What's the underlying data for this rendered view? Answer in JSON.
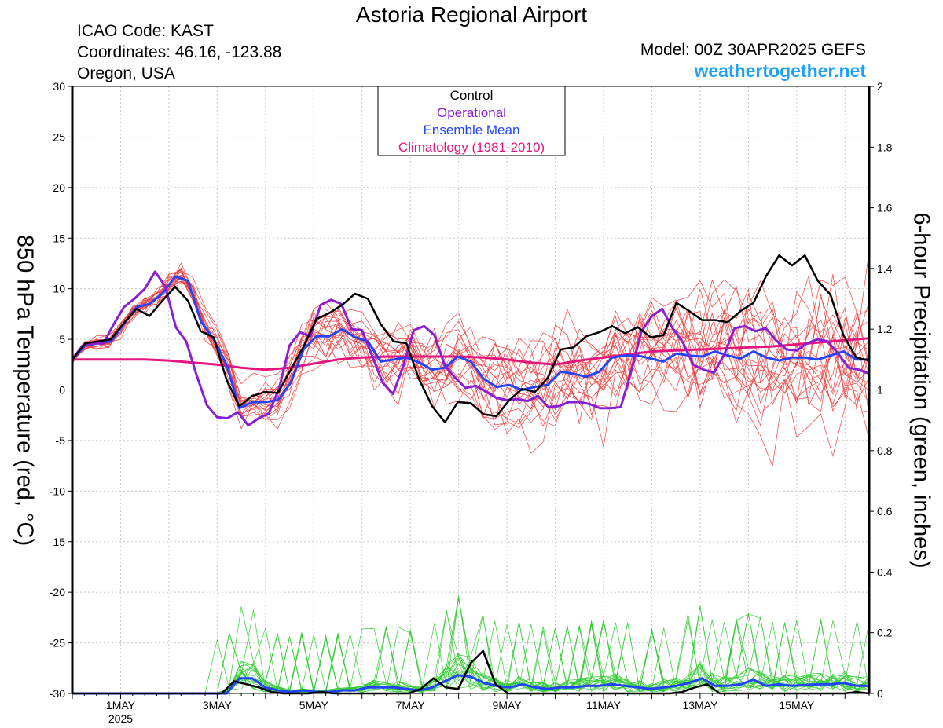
{
  "header": {
    "title": "Astoria Regional Airport",
    "icao": "ICAO Code: KAST",
    "coordinates": "Coordinates: 46.16, -123.88",
    "region": "Oregon, USA",
    "model": "Model: 00Z 30APR2025 GEFS",
    "website": "weathertogether.net"
  },
  "chart_data": {
    "type": "line",
    "title": "Astoria Regional Airport",
    "ylabel_left": "850 hPa Temperature (red, °C)",
    "ylabel_right": "6-hour Precipitation (green, inches)",
    "ylim_left": [
      -30,
      30
    ],
    "ylim_right": [
      0,
      2
    ],
    "yticks_left": [
      "30",
      "25",
      "20",
      "15",
      "10",
      "5",
      "0",
      "-5",
      "-10",
      "-15",
      "-20",
      "-25",
      "-30"
    ],
    "yticks_right": [
      "2",
      "1.8",
      "1.6",
      "1.4",
      "1.2",
      "1",
      "0.8",
      "0.6",
      "0.4",
      "0.2",
      "0"
    ],
    "xlim_days": [
      0,
      16.5
    ],
    "xticks": [
      {
        "label": "1MAY",
        "sub": "2025",
        "day": 1
      },
      {
        "label": "3MAY",
        "day": 3
      },
      {
        "label": "5MAY",
        "day": 5
      },
      {
        "label": "7MAY",
        "day": 7
      },
      {
        "label": "9MAY",
        "day": 9
      },
      {
        "label": "11MAY",
        "day": 11
      },
      {
        "label": "13MAY",
        "day": 13
      },
      {
        "label": "15MAY",
        "day": 15
      }
    ],
    "grid": true,
    "legend": {
      "position": "top-center",
      "entries": [
        {
          "name": "Control",
          "color": "#000000"
        },
        {
          "name": "Operational",
          "color": "#8a1ed6"
        },
        {
          "name": "Ensemble Mean",
          "color": "#2244ff"
        },
        {
          "name": "Climatology (1981-2010)",
          "color": "#e6157e"
        }
      ]
    },
    "colors": {
      "control": "#000000",
      "operational": "#8a1ed6",
      "mean": "#2244ff",
      "climatology": "#e6157e",
      "members_temp": "#f04040",
      "members_precip": "#33cc33"
    },
    "series_temp": {
      "control": [
        3,
        4.6,
        4.8,
        5,
        6.6,
        8,
        7.3,
        8.8,
        10.2,
        8.8,
        5.8,
        5.2,
        1,
        -1.6,
        -0.6,
        -0.2,
        -0.3,
        2,
        4.3,
        7,
        7.6,
        8.4,
        9.5,
        9,
        6.5,
        4.8,
        4.6,
        1,
        -1.6,
        -3.2,
        -1.2,
        -1.3,
        -2.4,
        -2.6,
        -1,
        0.1,
        -0.2,
        1.2,
        4,
        4.2,
        5.3,
        5.7,
        6.3,
        5.6,
        6.2,
        5.2,
        5.4,
        8.6,
        7.8,
        6.9,
        6.9,
        6.7,
        7.8,
        8.6,
        11.3,
        13.3,
        12.3,
        13.3,
        10.8,
        9.4,
        5.4,
        3.2,
        2.9
      ],
      "operational": [
        3,
        4.4,
        4.6,
        4.6,
        6.5,
        8.2,
        9,
        10,
        11.7,
        10.2,
        6.2,
        4.8,
        1.5,
        -1.5,
        -2.7,
        -2.8,
        -2.2,
        -3.5,
        -2.8,
        -2.3,
        0.2,
        4.4,
        5.7,
        5.3,
        8.4,
        8.9,
        8.5,
        6,
        5.9,
        3.3,
        0.7,
        -0.4,
        2.4,
        5.9,
        6.3,
        5.4,
        2.4,
        1.2,
        0.2,
        0.4,
        -0.2,
        -0.8,
        -1,
        -0.9,
        -1.1,
        -0.6,
        -1.7,
        -1.6,
        -1.2,
        -1.2,
        -1.4,
        -1.8,
        -1.8,
        -1.7,
        1.8,
        5.8,
        7.3,
        8,
        6.1,
        4.7,
        2.5,
        2,
        1.7,
        3.5,
        6.1,
        6.3,
        5.8,
        6.1,
        4.9,
        4,
        3.9,
        4.6,
        5,
        4.8,
        3.6,
        2.2,
        2,
        1.6
      ],
      "mean": [
        3,
        4.4,
        4.6,
        4.8,
        6.5,
        8.2,
        8.5,
        9.5,
        11.2,
        10.8,
        6.8,
        5,
        2.5,
        -1.8,
        -1.2,
        -1.2,
        -1,
        0.7,
        4,
        5.3,
        5.3,
        6,
        5.2,
        4.8,
        2.8,
        3,
        3.2,
        2.7,
        2,
        2.2,
        3.3,
        2.8,
        1.1,
        0.3,
        0.5,
        0,
        0.3,
        0.5,
        1.8,
        1.6,
        1.3,
        1.8,
        3.2,
        3.4,
        3.4,
        3.1,
        2.8,
        3.6,
        3.4,
        3.3,
        3.8,
        3.4,
        3.1,
        3.8,
        3.2,
        2.9,
        3.2,
        3.2,
        3,
        3.4,
        3.8,
        3,
        3
      ],
      "climatology": [
        3,
        3,
        3,
        3,
        2.9,
        2.7,
        2.5,
        2.2,
        2,
        2.2,
        2.6,
        3,
        3.2,
        3.3,
        3.3,
        3.3,
        3.3,
        3.2,
        3,
        2.7,
        2.5,
        2.9,
        3.2,
        3.5,
        3.8,
        3.9,
        4,
        4.1,
        4.2,
        4.3,
        4.5,
        4.7,
        4.9,
        5.1
      ]
    },
    "series_precip": {
      "control": [
        0,
        0,
        0,
        0,
        0,
        0,
        0,
        0,
        0,
        0,
        0,
        0,
        0,
        0.04,
        0.03,
        0.02,
        0.005,
        0,
        0,
        0,
        0.005,
        0,
        0,
        0,
        0,
        0,
        0,
        0,
        0.015,
        0.05,
        0.02,
        0.015,
        0.1,
        0.14,
        0.03,
        0,
        0,
        0,
        0,
        0,
        0,
        0,
        0,
        0,
        0,
        0,
        0,
        0,
        0,
        0.005,
        0.02,
        0.03,
        0,
        0,
        0,
        0,
        0,
        0,
        0,
        0,
        0,
        0,
        0,
        0.005,
        0
      ],
      "mean": [
        0,
        0,
        0,
        0,
        0,
        0,
        0,
        0,
        0,
        0,
        0,
        0,
        0,
        0.05,
        0.05,
        0.02,
        0.01,
        0.005,
        0.01,
        0.005,
        0.005,
        0.01,
        0.01,
        0.02,
        0.02,
        0.02,
        0.015,
        0.01,
        0.02,
        0.04,
        0.06,
        0.055,
        0.035,
        0.025,
        0.02,
        0.03,
        0.02,
        0.015,
        0.02,
        0.02,
        0.025,
        0.025,
        0.03,
        0.025,
        0.02,
        0.015,
        0.02,
        0.025,
        0.035,
        0.05,
        0.025,
        0.025,
        0.03,
        0.045,
        0.025,
        0.03,
        0.025,
        0.028,
        0.03,
        0.03,
        0.035,
        0.025,
        0.025
      ]
    }
  }
}
